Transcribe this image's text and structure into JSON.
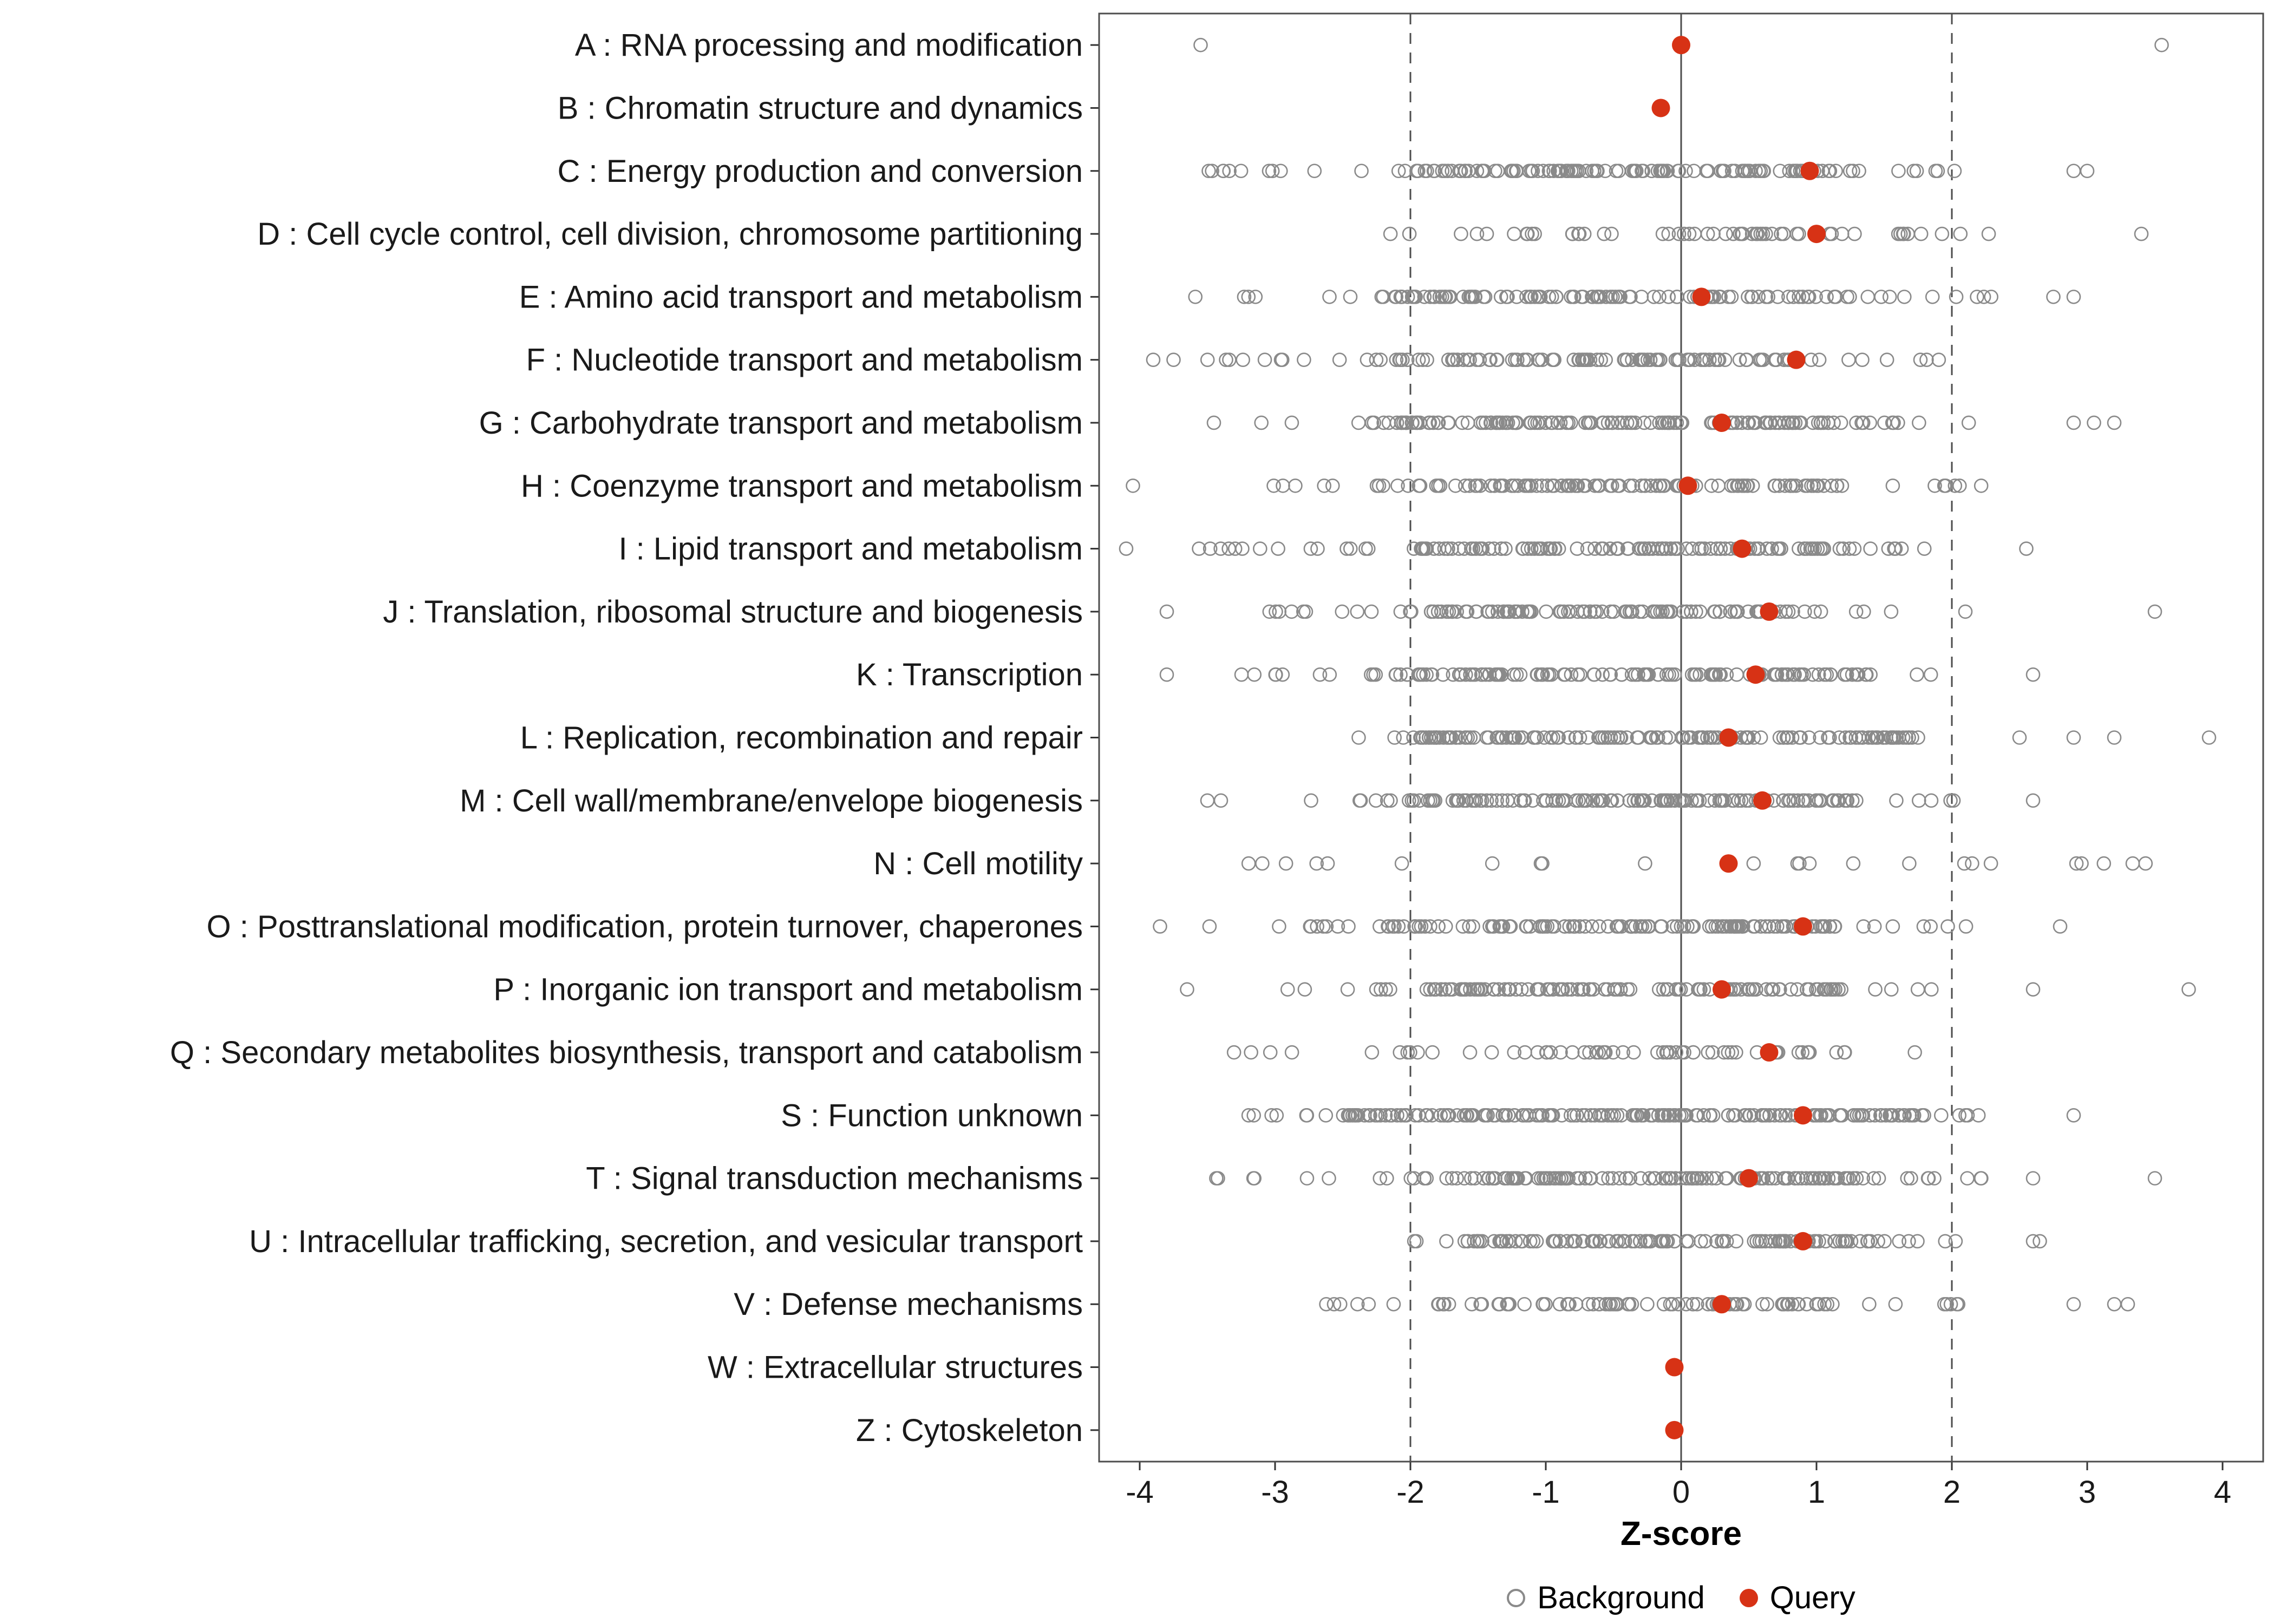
{
  "chart_data": {
    "type": "scatter",
    "subtype": "strip-plot-by-category",
    "title": "",
    "xlabel": "Z-score",
    "ylabel": "",
    "xlim": [
      -4.3,
      4.3
    ],
    "x_ticks": [
      -4,
      -3,
      -2,
      -1,
      0,
      1,
      2,
      3,
      4
    ],
    "grid": "off",
    "reference_lines": {
      "solid": [
        0
      ],
      "dashed": [
        -2,
        2
      ]
    },
    "colors": {
      "background_point": "#8a8a8a",
      "query_point": "#d73215",
      "panel_border": "#4d4d4d",
      "reference_line": "#4d4d4d",
      "text": "#1a1a1a"
    },
    "legend": [
      {
        "label": "Background",
        "marker": "open-circle",
        "color": "#8a8a8a"
      },
      {
        "label": "Query",
        "marker": "filled-circle",
        "color": "#d73215"
      }
    ],
    "legend_position": "bottom",
    "categories": [
      {
        "label": "A : RNA processing and modification",
        "query": 0.0,
        "background": {
          "outliers": [
            -3.55,
            3.55
          ]
        }
      },
      {
        "label": "B : Chromatin structure and dynamics",
        "query": -0.15,
        "background": {}
      },
      {
        "label": "C : Energy production and conversion",
        "query": 0.95,
        "background": {
          "dense": [
            -2.05,
            1.2,
            95
          ],
          "sparse": [
            -3.5,
            2.1,
            45
          ],
          "outliers": [
            2.9,
            3.0
          ]
        }
      },
      {
        "label": "D : Cell cycle control, cell division, chromosome partitioning",
        "query": 1.0,
        "background": {
          "dense": [
            -1.9,
            1.7,
            38
          ],
          "sparse": [
            -2.6,
            2.3,
            18
          ],
          "outliers": [
            3.4
          ]
        }
      },
      {
        "label": "E : Amino acid transport and metabolism",
        "query": 0.15,
        "background": {
          "dense": [
            -2.2,
            1.3,
            90
          ],
          "sparse": [
            -3.6,
            2.3,
            40
          ],
          "outliers": [
            2.75,
            2.9
          ]
        }
      },
      {
        "label": "F : Nucleotide transport and metabolism",
        "query": 0.85,
        "background": {
          "dense": [
            -2.3,
            1.0,
            80
          ],
          "sparse": [
            -3.5,
            1.95,
            35
          ],
          "outliers": [
            -3.9,
            -3.75
          ]
        }
      },
      {
        "label": "G : Carbohydrate transport and metabolism",
        "query": 0.3,
        "background": {
          "dense": [
            -2.1,
            1.15,
            100
          ],
          "sparse": [
            -3.5,
            2.4,
            45
          ],
          "outliers": [
            2.9,
            3.05,
            3.2
          ]
        }
      },
      {
        "label": "H : Coenzyme transport and metabolism",
        "query": 0.05,
        "background": {
          "dense": [
            -2.3,
            1.2,
            85
          ],
          "sparse": [
            -3.3,
            2.25,
            40
          ],
          "outliers": [
            -4.05
          ]
        }
      },
      {
        "label": "I : Lipid transport and metabolism",
        "query": 0.45,
        "background": {
          "dense": [
            -2.0,
            1.3,
            90
          ],
          "sparse": [
            -3.7,
            2.3,
            40
          ],
          "outliers": [
            -4.1,
            2.55
          ]
        }
      },
      {
        "label": "J : Translation, ribosomal structure and biogenesis",
        "query": 0.65,
        "background": {
          "dense": [
            -1.85,
            1.1,
            85
          ],
          "sparse": [
            -3.3,
            1.6,
            30
          ],
          "outliers": [
            -3.8,
            2.1,
            3.5
          ]
        }
      },
      {
        "label": "K : Transcription",
        "query": 0.55,
        "background": {
          "dense": [
            -2.3,
            1.4,
            100
          ],
          "sparse": [
            -3.4,
            1.9,
            40
          ],
          "outliers": [
            -3.8,
            2.6
          ]
        }
      },
      {
        "label": "L : Replication, recombination and repair",
        "query": 0.35,
        "background": {
          "dense": [
            -2.0,
            1.8,
            130
          ],
          "sparse": [
            -2.5,
            2.1,
            25
          ],
          "outliers": [
            2.5,
            2.9,
            3.2,
            3.9
          ]
        }
      },
      {
        "label": "M : Cell wall/membrane/envelope biogenesis",
        "query": 0.6,
        "background": {
          "dense": [
            -2.3,
            1.3,
            110
          ],
          "sparse": [
            -3.0,
            2.1,
            35
          ],
          "outliers": [
            -3.5,
            -3.4,
            2.6
          ]
        }
      },
      {
        "label": "N : Cell motility",
        "query": 0.35,
        "background": {
          "sparse": [
            -3.4,
            3.8,
            24
          ]
        }
      },
      {
        "label": "O : Posttranslational modification, protein turnover, chaperones",
        "query": 0.9,
        "background": {
          "dense": [
            -2.2,
            1.2,
            100
          ],
          "sparse": [
            -3.6,
            2.2,
            40
          ],
          "outliers": [
            -3.85,
            2.8
          ]
        }
      },
      {
        "label": "P : Inorganic ion transport and metabolism",
        "query": 0.3,
        "background": {
          "dense": [
            -1.9,
            1.2,
            85
          ],
          "sparse": [
            -3.2,
            2.2,
            38
          ],
          "outliers": [
            -3.65,
            2.6,
            3.75
          ]
        }
      },
      {
        "label": "Q : Secondary metabolites biosynthesis, transport and catabolism",
        "query": 0.65,
        "background": {
          "dense": [
            -1.6,
            1.3,
            40
          ],
          "sparse": [
            -3.4,
            2.1,
            20
          ]
        }
      },
      {
        "label": "S : Function unknown",
        "query": 0.9,
        "background": {
          "dense": [
            -2.5,
            1.8,
            160
          ],
          "sparse": [
            -3.2,
            2.2,
            35
          ],
          "outliers": [
            2.9
          ]
        }
      },
      {
        "label": "T : Signal transduction mechanisms",
        "query": 0.5,
        "background": {
          "dense": [
            -2.0,
            1.3,
            110
          ],
          "sparse": [
            -3.45,
            2.3,
            40
          ],
          "outliers": [
            2.6,
            3.5
          ]
        }
      },
      {
        "label": "U : Intracellular trafficking, secretion, and vesicular transport",
        "query": 0.9,
        "background": {
          "dense": [
            -1.6,
            1.4,
            95
          ],
          "sparse": [
            -2.4,
            2.2,
            30
          ],
          "outliers": [
            2.6,
            2.65
          ]
        }
      },
      {
        "label": "V : Defense mechanisms",
        "query": 0.3,
        "background": {
          "dense": [
            -1.8,
            1.3,
            60
          ],
          "sparse": [
            -3.55,
            2.2,
            28
          ],
          "outliers": [
            2.9,
            3.2,
            3.3
          ]
        }
      },
      {
        "label": "W : Extracellular structures",
        "query": -0.05,
        "background": {}
      },
      {
        "label": "Z : Cytoskeleton",
        "query": -0.05,
        "background": {}
      }
    ]
  }
}
